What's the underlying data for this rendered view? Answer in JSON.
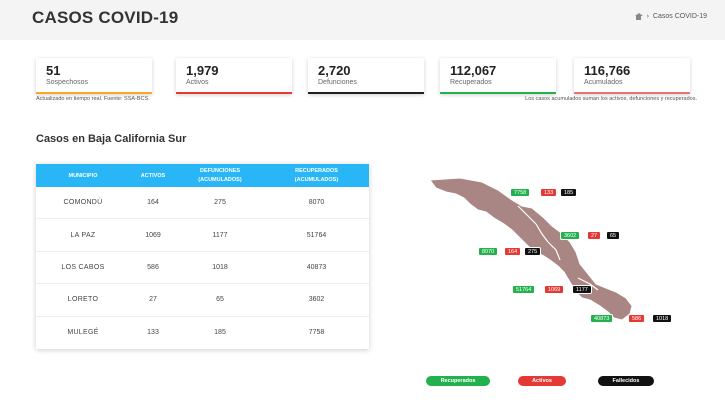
{
  "header": {
    "title": "CASOS COVID-19",
    "breadcrumb": "Casos COVID-19"
  },
  "stats": [
    {
      "value": "51",
      "label": "Sospechosos",
      "color": "#f9a825"
    },
    {
      "value": "1,979",
      "label": "Activos",
      "color": "#e53935"
    },
    {
      "value": "2,720",
      "label": "Defunciones",
      "color": "#212121"
    },
    {
      "value": "112,067",
      "label": "Recuperados",
      "color": "#23b14d"
    },
    {
      "value": "116,766",
      "label": "Acumulados",
      "color": "#e57373"
    }
  ],
  "notes": {
    "left": "Actualizado en tiempo real. Fuente: SSA-BCS.",
    "right": "Los casos acumulados suman los activos, defunciones y recuperados."
  },
  "section_title": "Casos en Baja California Sur",
  "table": {
    "headers": {
      "municipio": "MUNICIPIO",
      "activos": "ACTIVOS",
      "defunciones": "DEFUNCIONES",
      "defunciones_sub": "(ACUMULADOS)",
      "recuperados": "RECUPERADOS",
      "recuperados_sub": "(ACUMULADOS)"
    },
    "rows": [
      {
        "municipio": "COMONDÚ",
        "activos": "164",
        "defunciones": "275",
        "recuperados": "8070"
      },
      {
        "municipio": "LA PAZ",
        "activos": "1069",
        "defunciones": "1177",
        "recuperados": "51764"
      },
      {
        "municipio": "LOS CABOS",
        "activos": "586",
        "defunciones": "1018",
        "recuperados": "40873"
      },
      {
        "municipio": "LORETO",
        "activos": "27",
        "defunciones": "65",
        "recuperados": "3602"
      },
      {
        "municipio": "MULEGÉ",
        "activos": "133",
        "defunciones": "185",
        "recuperados": "7758"
      }
    ]
  },
  "map_badges": {
    "mulege": {
      "rec": "7758",
      "act": "133",
      "fal": "185"
    },
    "loreto": {
      "rec": "3602",
      "act": "27",
      "fal": "65"
    },
    "comondu": {
      "rec": "8070",
      "act": "164",
      "fal": "275"
    },
    "lapaz": {
      "rec": "51764",
      "act": "1069",
      "fal": "1177"
    },
    "loscabos": {
      "rec": "40873",
      "act": "586",
      "fal": "1018"
    }
  },
  "map_colors": {
    "land": "#a98583",
    "border": "#ffffff"
  },
  "legend": {
    "recuperados": "Recuperados",
    "activos": "Activos",
    "fallecidos": "Fallecidos"
  }
}
